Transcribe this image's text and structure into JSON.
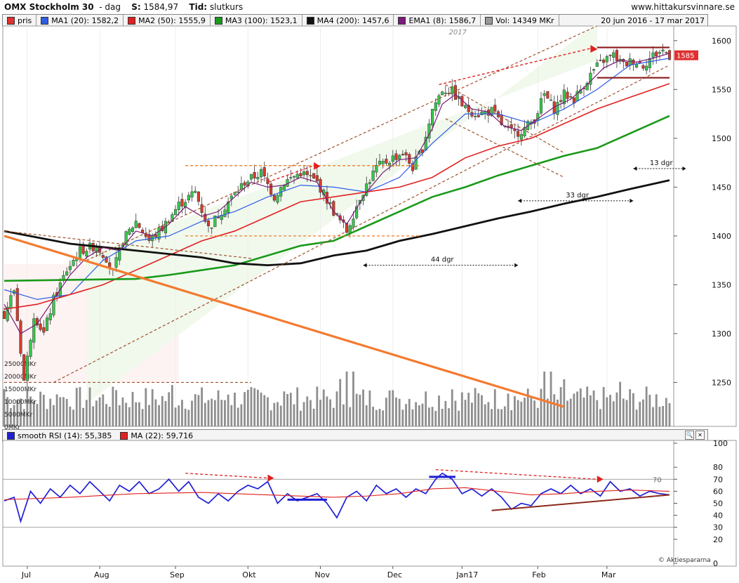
{
  "header": {
    "instrument": "OMX Stockholm 30",
    "interval": "dag",
    "s_label": "S:",
    "s_value": "1584,97",
    "tid_label": "Tid:",
    "tid_value": "slutkurs",
    "site": "www.hittakursvinnare.se",
    "range": "20 jun 2016 - 17 mar 2017"
  },
  "legend": [
    {
      "label": "pris",
      "color": "#e03030"
    },
    {
      "label": "MA1 (20): 1582,2",
      "color": "#2e5ce6"
    },
    {
      "label": "MA2 (50): 1555,9",
      "color": "#e02020"
    },
    {
      "label": "MA3 (100): 1523,1",
      "color": "#1a9a1a"
    },
    {
      "label": "MA4 (200): 1457,6",
      "color": "#111111"
    },
    {
      "label": "EMA1 (8): 1586,7",
      "color": "#7a1a7a"
    },
    {
      "label": "Vol: 14349 MKr",
      "color": "#999999"
    }
  ],
  "rsi_legend": [
    {
      "label": "smooth RSI (14): 55,385",
      "color": "#1f1fd6"
    },
    {
      "label": "MA (22): 59,716",
      "color": "#e02020"
    }
  ],
  "buttons": {
    "zoom": "🔍",
    "close": "✕"
  },
  "chart_data": {
    "type": "candlestick",
    "year_label": "2017",
    "x_labels": [
      "Jul",
      "Aug",
      "Sep",
      "Okt",
      "Nov",
      "Dec",
      "Jan17",
      "Feb",
      "Mar"
    ],
    "y_axis": {
      "min": 1205,
      "max": 1615,
      "ticks": [
        1250,
        1300,
        1350,
        1400,
        1450,
        1500,
        1550,
        1600
      ]
    },
    "last_price": "1585",
    "volume_labels": [
      "25000MKr",
      "20000MKr",
      "15000MKr",
      "10000MKr",
      "5000MKr",
      "0MKr"
    ],
    "annotations": [
      "44 dgr",
      "33 dgr",
      "13 dgr"
    ],
    "rsi_axis": {
      "min": 0,
      "max": 100,
      "ticks": [
        0,
        20,
        30,
        40,
        50,
        60,
        70,
        80,
        100
      ]
    },
    "copyright": "© Aktiespararna",
    "close_anchors": [
      {
        "d": 0,
        "v": 1320
      },
      {
        "d": 3,
        "v": 1345
      },
      {
        "d": 6,
        "v": 1252
      },
      {
        "d": 9,
        "v": 1320
      },
      {
        "d": 12,
        "v": 1300
      },
      {
        "d": 15,
        "v": 1335
      },
      {
        "d": 19,
        "v": 1365
      },
      {
        "d": 23,
        "v": 1385
      },
      {
        "d": 28,
        "v": 1390
      },
      {
        "d": 31,
        "v": 1378
      },
      {
        "d": 33,
        "v": 1362
      },
      {
        "d": 36,
        "v": 1395
      },
      {
        "d": 40,
        "v": 1415
      },
      {
        "d": 44,
        "v": 1395
      },
      {
        "d": 48,
        "v": 1408
      },
      {
        "d": 53,
        "v": 1432
      },
      {
        "d": 58,
        "v": 1445
      },
      {
        "d": 62,
        "v": 1408
      },
      {
        "d": 68,
        "v": 1435
      },
      {
        "d": 73,
        "v": 1455
      },
      {
        "d": 78,
        "v": 1465
      },
      {
        "d": 82,
        "v": 1440
      },
      {
        "d": 85,
        "v": 1455
      },
      {
        "d": 90,
        "v": 1465
      },
      {
        "d": 95,
        "v": 1455
      },
      {
        "d": 100,
        "v": 1425
      },
      {
        "d": 104,
        "v": 1405
      },
      {
        "d": 108,
        "v": 1440
      },
      {
        "d": 113,
        "v": 1470
      },
      {
        "d": 118,
        "v": 1480
      },
      {
        "d": 121,
        "v": 1485
      },
      {
        "d": 124,
        "v": 1470
      },
      {
        "d": 127,
        "v": 1490
      },
      {
        "d": 130,
        "v": 1530
      },
      {
        "d": 133,
        "v": 1550
      },
      {
        "d": 136,
        "v": 1548
      },
      {
        "d": 140,
        "v": 1530
      },
      {
        "d": 144,
        "v": 1525
      },
      {
        "d": 148,
        "v": 1528
      },
      {
        "d": 152,
        "v": 1510
      },
      {
        "d": 155,
        "v": 1505
      },
      {
        "d": 158,
        "v": 1510
      },
      {
        "d": 161,
        "v": 1520
      },
      {
        "d": 164,
        "v": 1545
      },
      {
        "d": 167,
        "v": 1530
      },
      {
        "d": 170,
        "v": 1545
      },
      {
        "d": 173,
        "v": 1540
      },
      {
        "d": 176,
        "v": 1555
      },
      {
        "d": 179,
        "v": 1570
      },
      {
        "d": 182,
        "v": 1580
      },
      {
        "d": 185,
        "v": 1585
      },
      {
        "d": 188,
        "v": 1575
      },
      {
        "d": 191,
        "v": 1580
      },
      {
        "d": 194,
        "v": 1575
      },
      {
        "d": 197,
        "v": 1585
      },
      {
        "d": 200,
        "v": 1590
      },
      {
        "d": 202,
        "v": 1585
      }
    ],
    "ma_series": [
      {
        "name": "MA1 (20)",
        "color": "#2e5ce6",
        "width": 1.2,
        "points": [
          [
            0,
            1345
          ],
          [
            10,
            1335
          ],
          [
            20,
            1340
          ],
          [
            30,
            1375
          ],
          [
            40,
            1395
          ],
          [
            50,
            1400
          ],
          [
            60,
            1415
          ],
          [
            70,
            1425
          ],
          [
            80,
            1440
          ],
          [
            90,
            1452
          ],
          [
            100,
            1450
          ],
          [
            110,
            1445
          ],
          [
            120,
            1460
          ],
          [
            130,
            1495
          ],
          [
            140,
            1525
          ],
          [
            150,
            1525
          ],
          [
            160,
            1515
          ],
          [
            170,
            1530
          ],
          [
            180,
            1550
          ],
          [
            190,
            1575
          ],
          [
            202,
            1582
          ]
        ]
      },
      {
        "name": "MA2 (50)",
        "color": "#e02020",
        "width": 1.6,
        "points": [
          [
            0,
            1325
          ],
          [
            10,
            1330
          ],
          [
            20,
            1340
          ],
          [
            30,
            1350
          ],
          [
            40,
            1365
          ],
          [
            50,
            1380
          ],
          [
            60,
            1395
          ],
          [
            70,
            1405
          ],
          [
            80,
            1420
          ],
          [
            90,
            1435
          ],
          [
            100,
            1440
          ],
          [
            110,
            1445
          ],
          [
            120,
            1450
          ],
          [
            130,
            1460
          ],
          [
            140,
            1480
          ],
          [
            150,
            1492
          ],
          [
            160,
            1500
          ],
          [
            170,
            1515
          ],
          [
            180,
            1530
          ],
          [
            190,
            1542
          ],
          [
            202,
            1556
          ]
        ]
      },
      {
        "name": "MA3 (100)",
        "color": "#1a9a1a",
        "width": 2.6,
        "points": [
          [
            0,
            1354
          ],
          [
            20,
            1355
          ],
          [
            40,
            1356
          ],
          [
            50,
            1360
          ],
          [
            60,
            1365
          ],
          [
            70,
            1370
          ],
          [
            80,
            1380
          ],
          [
            90,
            1390
          ],
          [
            100,
            1395
          ],
          [
            110,
            1410
          ],
          [
            120,
            1425
          ],
          [
            130,
            1440
          ],
          [
            140,
            1450
          ],
          [
            150,
            1462
          ],
          [
            160,
            1472
          ],
          [
            170,
            1482
          ],
          [
            180,
            1490
          ],
          [
            190,
            1505
          ],
          [
            202,
            1523
          ]
        ]
      },
      {
        "name": "MA4 (200)",
        "color": "#111111",
        "width": 2.8,
        "points": [
          [
            0,
            1405
          ],
          [
            20,
            1392
          ],
          [
            40,
            1385
          ],
          [
            60,
            1378
          ],
          [
            70,
            1372
          ],
          [
            80,
            1370
          ],
          [
            90,
            1372
          ],
          [
            100,
            1380
          ],
          [
            110,
            1385
          ],
          [
            120,
            1395
          ],
          [
            130,
            1402
          ],
          [
            140,
            1410
          ],
          [
            150,
            1418
          ],
          [
            160,
            1425
          ],
          [
            170,
            1433
          ],
          [
            180,
            1440
          ],
          [
            190,
            1448
          ],
          [
            202,
            1457
          ]
        ]
      },
      {
        "name": "EMA1 (8)",
        "color": "#7a1a7a",
        "width": 1.2,
        "points": [
          [
            0,
            1330
          ],
          [
            5,
            1300
          ],
          [
            10,
            1310
          ],
          [
            15,
            1335
          ],
          [
            20,
            1360
          ],
          [
            25,
            1378
          ],
          [
            30,
            1388
          ],
          [
            35,
            1385
          ],
          [
            40,
            1405
          ],
          [
            45,
            1400
          ],
          [
            50,
            1412
          ],
          [
            55,
            1430
          ],
          [
            60,
            1420
          ],
          [
            65,
            1425
          ],
          [
            70,
            1440
          ],
          [
            75,
            1455
          ],
          [
            80,
            1450
          ],
          [
            85,
            1452
          ],
          [
            90,
            1460
          ],
          [
            95,
            1455
          ],
          [
            100,
            1425
          ],
          [
            104,
            1412
          ],
          [
            110,
            1445
          ],
          [
            115,
            1465
          ],
          [
            120,
            1478
          ],
          [
            125,
            1480
          ],
          [
            130,
            1510
          ],
          [
            133,
            1535
          ],
          [
            137,
            1545
          ],
          [
            142,
            1530
          ],
          [
            147,
            1527
          ],
          [
            152,
            1512
          ],
          [
            157,
            1508
          ],
          [
            162,
            1520
          ],
          [
            167,
            1532
          ],
          [
            172,
            1540
          ],
          [
            177,
            1555
          ],
          [
            182,
            1572
          ],
          [
            187,
            1580
          ],
          [
            192,
            1578
          ],
          [
            197,
            1582
          ],
          [
            202,
            1587
          ]
        ]
      }
    ],
    "rsi_series": [
      {
        "name": "smooth RSI (14)",
        "color": "#1f1fd6",
        "width": 1.7,
        "points": [
          [
            0,
            52
          ],
          [
            3,
            55
          ],
          [
            5,
            35
          ],
          [
            8,
            60
          ],
          [
            11,
            50
          ],
          [
            14,
            62
          ],
          [
            17,
            55
          ],
          [
            20,
            65
          ],
          [
            23,
            58
          ],
          [
            26,
            68
          ],
          [
            29,
            60
          ],
          [
            32,
            52
          ],
          [
            35,
            65
          ],
          [
            38,
            60
          ],
          [
            41,
            68
          ],
          [
            44,
            58
          ],
          [
            47,
            62
          ],
          [
            50,
            70
          ],
          [
            53,
            60
          ],
          [
            56,
            68
          ],
          [
            59,
            55
          ],
          [
            62,
            50
          ],
          [
            65,
            58
          ],
          [
            68,
            52
          ],
          [
            71,
            60
          ],
          [
            74,
            65
          ],
          [
            77,
            62
          ],
          [
            80,
            68
          ],
          [
            83,
            50
          ],
          [
            86,
            58
          ],
          [
            89,
            52
          ],
          [
            92,
            55
          ],
          [
            95,
            58
          ],
          [
            98,
            50
          ],
          [
            101,
            38
          ],
          [
            104,
            55
          ],
          [
            107,
            60
          ],
          [
            110,
            52
          ],
          [
            113,
            65
          ],
          [
            116,
            58
          ],
          [
            119,
            62
          ],
          [
            122,
            55
          ],
          [
            125,
            62
          ],
          [
            128,
            58
          ],
          [
            131,
            70
          ],
          [
            133,
            75
          ],
          [
            136,
            70
          ],
          [
            139,
            58
          ],
          [
            142,
            62
          ],
          [
            145,
            56
          ],
          [
            148,
            62
          ],
          [
            151,
            55
          ],
          [
            154,
            45
          ],
          [
            157,
            50
          ],
          [
            160,
            48
          ],
          [
            163,
            58
          ],
          [
            166,
            62
          ],
          [
            169,
            58
          ],
          [
            172,
            65
          ],
          [
            175,
            58
          ],
          [
            178,
            62
          ],
          [
            181,
            56
          ],
          [
            184,
            68
          ],
          [
            187,
            60
          ],
          [
            190,
            62
          ],
          [
            193,
            56
          ],
          [
            196,
            60
          ],
          [
            199,
            58
          ],
          [
            202,
            57
          ]
        ]
      },
      {
        "name": "MA (22)",
        "color": "#e02020",
        "width": 1.1,
        "points": [
          [
            0,
            53
          ],
          [
            20,
            55
          ],
          [
            40,
            58
          ],
          [
            60,
            59
          ],
          [
            80,
            57
          ],
          [
            100,
            55
          ],
          [
            110,
            56
          ],
          [
            120,
            58
          ],
          [
            130,
            62
          ],
          [
            140,
            63
          ],
          [
            150,
            60
          ],
          [
            160,
            57
          ],
          [
            170,
            58
          ],
          [
            180,
            60
          ],
          [
            190,
            61
          ],
          [
            202,
            60
          ]
        ]
      }
    ]
  }
}
